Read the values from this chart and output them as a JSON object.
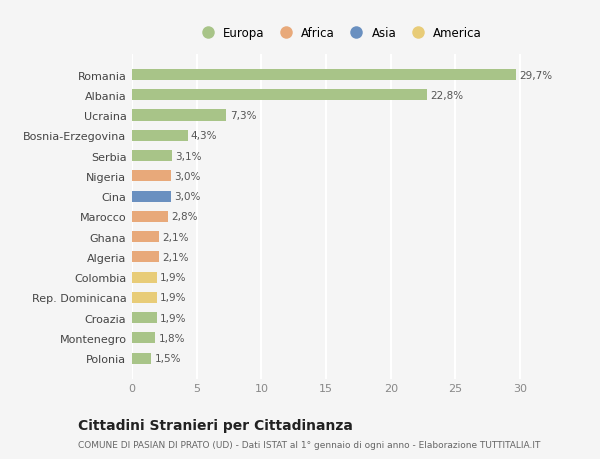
{
  "countries": [
    "Romania",
    "Albania",
    "Ucraina",
    "Bosnia-Erzegovina",
    "Serbia",
    "Nigeria",
    "Cina",
    "Marocco",
    "Ghana",
    "Algeria",
    "Colombia",
    "Rep. Dominicana",
    "Croazia",
    "Montenegro",
    "Polonia"
  ],
  "values": [
    29.7,
    22.8,
    7.3,
    4.3,
    3.1,
    3.0,
    3.0,
    2.8,
    2.1,
    2.1,
    1.9,
    1.9,
    1.9,
    1.8,
    1.5
  ],
  "labels": [
    "29,7%",
    "22,8%",
    "7,3%",
    "4,3%",
    "3,1%",
    "3,0%",
    "3,0%",
    "2,8%",
    "2,1%",
    "2,1%",
    "1,9%",
    "1,9%",
    "1,9%",
    "1,8%",
    "1,5%"
  ],
  "continents": [
    "Europa",
    "Europa",
    "Europa",
    "Europa",
    "Europa",
    "Africa",
    "Asia",
    "Africa",
    "Africa",
    "Africa",
    "America",
    "America",
    "Europa",
    "Europa",
    "Europa"
  ],
  "continent_colors": {
    "Europa": "#a8c488",
    "Africa": "#e8a97a",
    "Asia": "#6a90c0",
    "America": "#e8cc78"
  },
  "legend_order": [
    "Europa",
    "Africa",
    "Asia",
    "America"
  ],
  "legend_colors": [
    "#a8c488",
    "#e8a97a",
    "#6a90c0",
    "#e8cc78"
  ],
  "title": "Cittadini Stranieri per Cittadinanza",
  "subtitle": "COMUNE DI PASIAN DI PRATO (UD) - Dati ISTAT al 1° gennaio di ogni anno - Elaborazione TUTTITALIA.IT",
  "xlim": [
    0,
    32
  ],
  "xticks": [
    0,
    5,
    10,
    15,
    20,
    25,
    30
  ],
  "bg_color": "#f5f5f5",
  "plot_bg_color": "#f5f5f5",
  "grid_color": "#ffffff"
}
